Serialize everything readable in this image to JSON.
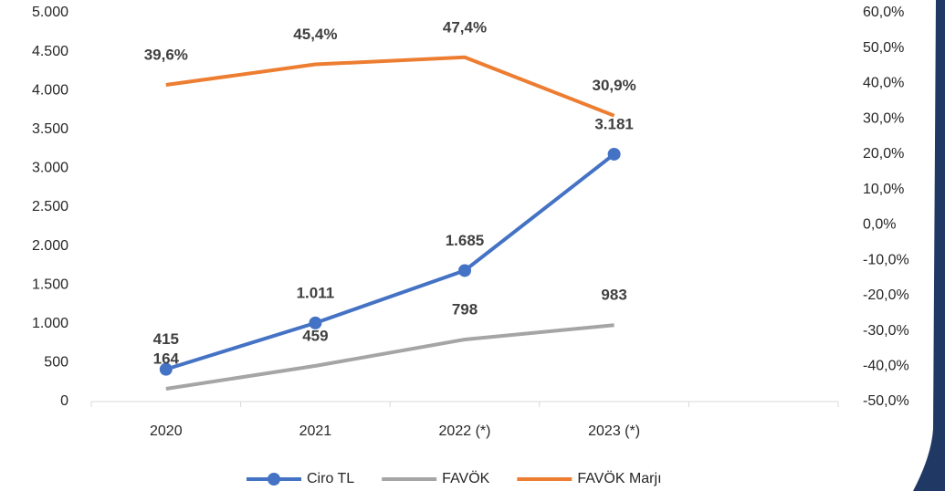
{
  "chart_data": {
    "type": "line",
    "categories": [
      "2020",
      "2021",
      "2022 (*)",
      "2023 (*)",
      null
    ],
    "series": [
      {
        "name": "Ciro TL",
        "color": "#4472c4",
        "markers": true,
        "values": [
          415,
          1011,
          1685,
          3181,
          null
        ],
        "value_labels": [
          "415",
          "1.011",
          "1.685",
          "3.181",
          null
        ]
      },
      {
        "name": "FAVÖK",
        "color": "#a5a5a5",
        "markers": false,
        "values": [
          164,
          459,
          798,
          983,
          null
        ]
      },
      {
        "name": "FAVÖK Marjı",
        "color": "#ed7d31",
        "markers": false,
        "axis": "y2",
        "values": [
          39.6,
          45.4,
          47.4,
          30.9,
          null
        ],
        "value_labels": [
          "39,6%",
          "45,4%",
          "47,4%",
          "30,9%",
          null
        ]
      }
    ],
    "ylim": [
      0,
      5000
    ],
    "yticks": [
      0,
      500,
      {
        "value": 1000,
        "label": "1.000"
      },
      {
        "value": 1500,
        "label": "1.500"
      },
      {
        "value": 2000,
        "label": "2.000"
      },
      {
        "value": 2500,
        "label": "2.500"
      },
      {
        "value": 3000,
        "label": "3.000"
      },
      {
        "value": 3500,
        "label": "3.500"
      },
      {
        "value": 4000,
        "label": "4.000"
      },
      {
        "value": 4500,
        "label": "4.500"
      },
      {
        "value": 5000,
        "label": "5.000"
      }
    ],
    "y2lim": [
      -50,
      60
    ],
    "y2ticks": [
      {
        "value": -50,
        "label": "-50,0%"
      },
      {
        "value": -40,
        "label": "-40,0%"
      },
      {
        "value": -30,
        "label": "-30,0%"
      },
      {
        "value": -20,
        "label": "-20,0%"
      },
      {
        "value": -10,
        "label": "-10,0%"
      },
      {
        "value": 0,
        "label": "0,0%"
      },
      {
        "value": 10,
        "label": "10,0%"
      },
      {
        "value": 20,
        "label": "20,0%"
      },
      {
        "value": 30,
        "label": "30,0%"
      },
      {
        "value": 40,
        "label": "40,0%"
      },
      {
        "value": 50,
        "label": "50,0%"
      },
      {
        "value": 60,
        "label": "60,0%"
      }
    ],
    "legend": "bottom",
    "grid": false
  }
}
